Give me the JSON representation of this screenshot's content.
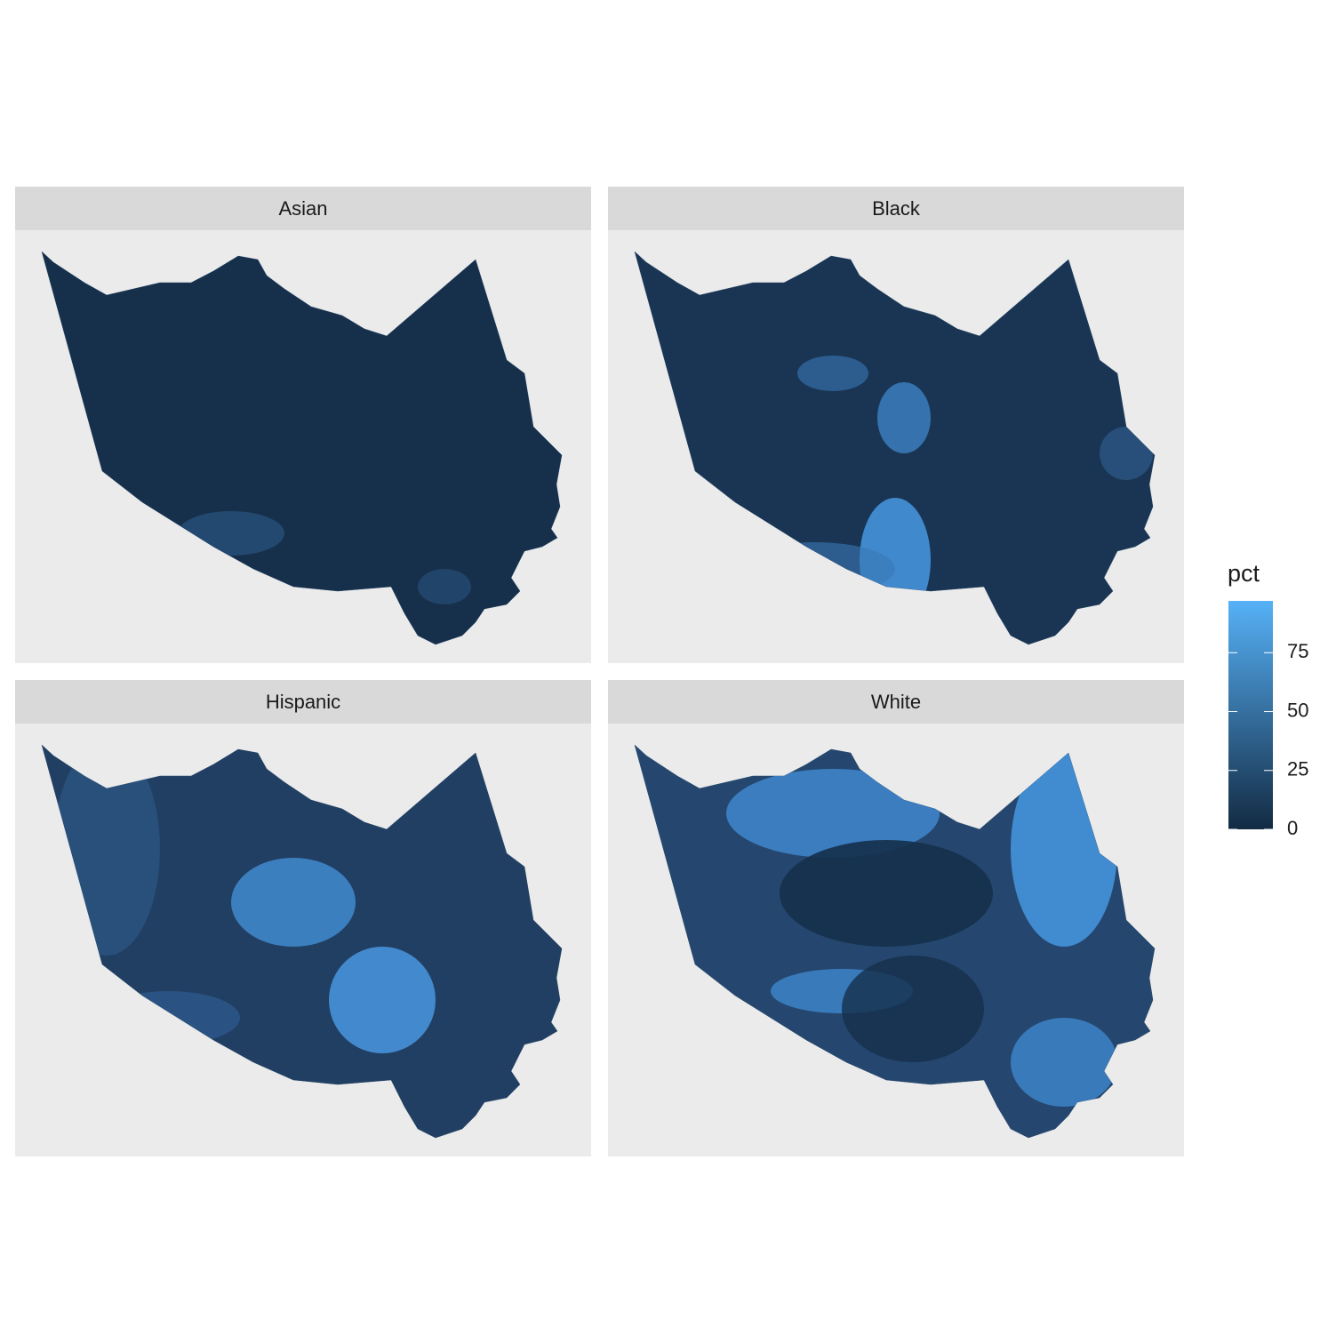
{
  "chart_data": {
    "type": "choropleth",
    "facets": [
      "Asian",
      "Black",
      "Hispanic",
      "White"
    ],
    "legend": {
      "title": "pct",
      "lim": [
        0,
        97
      ],
      "ticks": [
        0,
        25,
        50,
        75
      ],
      "low": "#132B43",
      "high": "#56B1F7"
    }
  }
}
